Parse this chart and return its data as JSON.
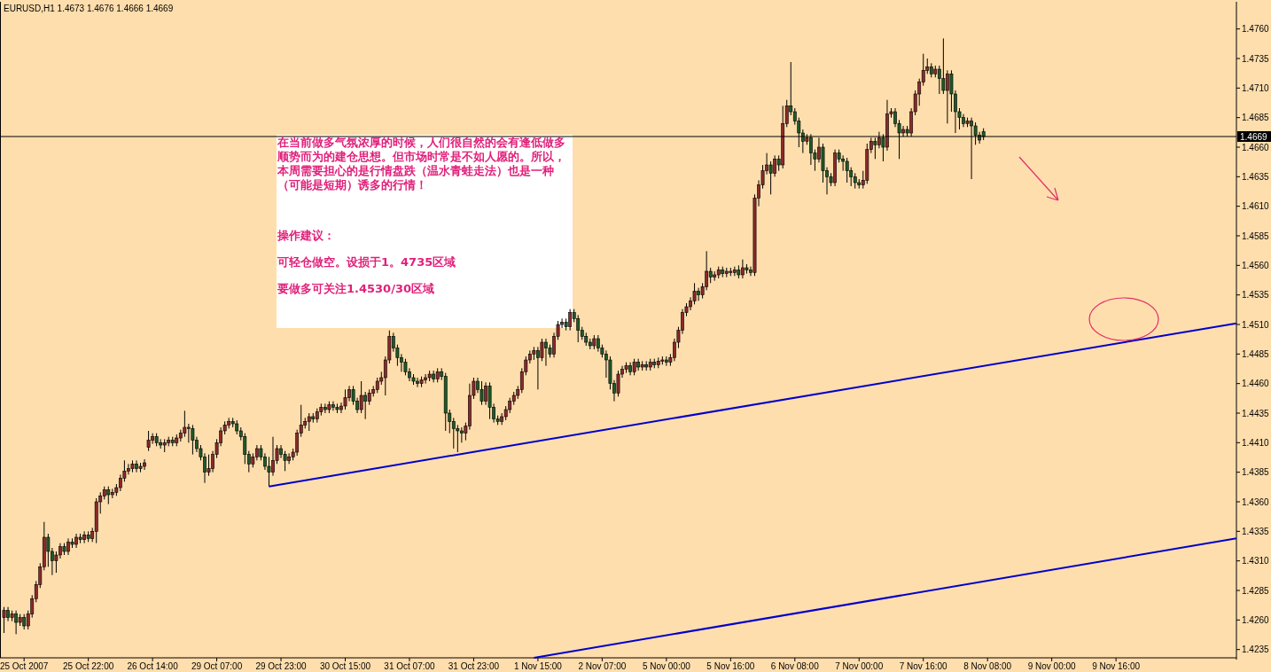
{
  "chart_data": {
    "type": "candlestick",
    "title": "EURUSD,H1 1.4673 1.4676 1.4666 1.4669",
    "annotations": [
      "在当前做多气氛浓厚的时候，人们很自然的会有逢低做多顺势而为的建仓思想。但市场时常是不如人愿的。所以，本周需要担心的是行情盘跌（温水青蛙走法）也是一种（可能是短期）诱多的行情！",
      "操作建议：",
      "可轻仓做空。设损于1。4735区域",
      "要做多可关注1.4530/30区域"
    ],
    "ylim": [
      1.4228,
      1.4783
    ],
    "categories": [
      null,
      null,
      null,
      null,
      null,
      "25 Oct 2007",
      null,
      null,
      null,
      null,
      null,
      null,
      null,
      null,
      null,
      null,
      null,
      null,
      null,
      null,
      null,
      "25 Oct 22:00",
      null,
      null,
      null,
      null,
      null,
      null,
      null,
      null,
      null,
      null,
      null,
      null,
      null,
      null,
      null,
      "26 Oct 14:00",
      null,
      null,
      null,
      null,
      null,
      null,
      null,
      null,
      null,
      null,
      null,
      null,
      null,
      null,
      null,
      "29 Oct 07:00",
      null,
      null,
      null,
      null,
      null,
      null,
      null,
      null,
      null,
      null,
      null,
      null,
      null,
      null,
      null,
      "29 Oct 23:00",
      null,
      null,
      null,
      null,
      null,
      null,
      null,
      null,
      null,
      null,
      null,
      null,
      null,
      null,
      null,
      "30 Oct 15:00",
      null,
      null,
      null,
      null,
      null,
      null,
      null,
      null,
      null,
      null,
      null,
      null,
      null,
      null,
      null,
      "31 Oct 07:00",
      null,
      null,
      null,
      null,
      null,
      null,
      null,
      null,
      null,
      null,
      null,
      null,
      null,
      null,
      null,
      "31 Oct 23:00",
      null,
      null,
      null,
      null,
      null,
      null,
      null,
      null,
      null,
      null,
      null,
      null,
      null,
      null,
      null,
      "1 Nov 15:00",
      null,
      null,
      null,
      null,
      null,
      null,
      null,
      null,
      null,
      null,
      null,
      null,
      null,
      null,
      null,
      "2 Nov 07:00",
      null,
      null,
      null,
      null,
      null,
      null,
      null,
      null,
      null,
      null,
      null,
      null,
      null,
      null,
      null,
      "5 Nov 00:00",
      null,
      null,
      null,
      null,
      null,
      null,
      null,
      null,
      null,
      null,
      null,
      null,
      null,
      null,
      null,
      "5 Nov 16:00",
      null,
      null,
      null,
      null,
      null,
      null,
      null,
      null,
      null,
      null,
      null,
      null,
      null,
      null,
      null,
      "6 Nov 08:00",
      null,
      null,
      null,
      null,
      null,
      null,
      null,
      null,
      null,
      null,
      null,
      null,
      null,
      null,
      null,
      "7 Nov 00:00",
      null,
      null,
      null,
      null,
      null,
      null,
      null,
      null,
      null,
      null,
      null,
      null,
      null,
      null,
      null,
      "7 Nov 16:00",
      null,
      null,
      null,
      null,
      null,
      null,
      null,
      null,
      null,
      null,
      null,
      null,
      null,
      null,
      null,
      "8 Nov 08:00",
      null,
      null,
      null,
      null,
      null,
      null,
      null,
      null,
      null,
      null,
      null,
      null,
      null,
      null,
      null,
      "9 Nov 00:00",
      null,
      null,
      null,
      null,
      null,
      null,
      null,
      null,
      null,
      null,
      null,
      null,
      null,
      null,
      null,
      "9 Nov 16:00",
      null,
      null,
      null,
      null,
      null,
      null,
      null,
      null,
      null,
      null,
      null,
      null,
      null,
      null,
      null,
      null,
      null,
      null,
      null,
      null,
      null,
      null,
      null,
      null,
      null,
      null,
      null,
      null,
      null,
      null
    ],
    "yticks": [
      {
        "value": 1.4235,
        "label": "1.4235"
      },
      {
        "value": 1.426,
        "label": "1.4260"
      },
      {
        "value": 1.4285,
        "label": "1.4285"
      },
      {
        "value": 1.431,
        "label": "1.4310"
      },
      {
        "value": 1.4335,
        "label": "1.4335"
      },
      {
        "value": 1.436,
        "label": "1.4360"
      },
      {
        "value": 1.4385,
        "label": "1.4385"
      },
      {
        "value": 1.441,
        "label": "1.4410"
      },
      {
        "value": 1.4435,
        "label": "1.4435"
      },
      {
        "value": 1.446,
        "label": "1.4460"
      },
      {
        "value": 1.4485,
        "label": "1.4485"
      },
      {
        "value": 1.451,
        "label": "1.4510"
      },
      {
        "value": 1.4535,
        "label": "1.4535"
      },
      {
        "value": 1.456,
        "label": "1.4560"
      },
      {
        "value": 1.4585,
        "label": "1.4585"
      },
      {
        "value": 1.461,
        "label": "1.4610"
      },
      {
        "value": 1.4635,
        "label": "1.4635"
      },
      {
        "value": 1.466,
        "label": "1.4660"
      },
      {
        "value": 1.4685,
        "label": "1.4685"
      },
      {
        "value": 1.471,
        "label": "1.4710"
      },
      {
        "value": 1.4735,
        "label": "1.4735"
      },
      {
        "value": 1.476,
        "label": "1.4760"
      }
    ],
    "ref_lines": [
      {
        "axis": "y",
        "value": 1.4669,
        "label": "1.4669",
        "color": "#000000"
      }
    ],
    "series": [
      {
        "type": "line",
        "color": "#0000cc",
        "values": [
          null,
          null,
          null,
          null,
          null,
          null,
          null,
          null,
          null,
          null,
          null,
          null,
          null,
          null,
          null,
          null,
          null,
          null,
          null,
          null,
          null,
          null,
          null,
          null,
          null,
          null,
          null,
          null,
          null,
          null,
          null,
          null,
          null,
          null,
          null,
          null,
          null,
          null,
          null,
          null,
          null,
          null,
          null,
          null,
          null,
          null,
          null,
          null,
          null,
          null,
          null,
          null,
          null,
          null,
          null,
          null,
          null,
          null,
          null,
          null,
          null,
          null,
          null,
          null,
          null,
          null,
          1.4373,
          null,
          null,
          null,
          null,
          null,
          null,
          null,
          null,
          null,
          null,
          null,
          null,
          null,
          null,
          null,
          null,
          null,
          null,
          null,
          null,
          null,
          null,
          null,
          null,
          null,
          null,
          null,
          null,
          null,
          null,
          null,
          null,
          null,
          null,
          null,
          null,
          null,
          null,
          null,
          null,
          null,
          null,
          null,
          null,
          null,
          null,
          null,
          null,
          null,
          null,
          null,
          null,
          null,
          null,
          null,
          null,
          null,
          null,
          null,
          null,
          null,
          null,
          null,
          null,
          null,
          null,
          null,
          null,
          null,
          null,
          null,
          null,
          null,
          null,
          null,
          null,
          null,
          null,
          null,
          null,
          null,
          null,
          null,
          null,
          null,
          null,
          null,
          null,
          null,
          null,
          null,
          null,
          null,
          null,
          null,
          null,
          null,
          null,
          null,
          null,
          null,
          null,
          null,
          null,
          null,
          null,
          null,
          null,
          null,
          null,
          null,
          null,
          null,
          null,
          null,
          null,
          null,
          null,
          null,
          null,
          null,
          null,
          null,
          null,
          null,
          null,
          null,
          null,
          null,
          null,
          null,
          null,
          null,
          null,
          null,
          null,
          null,
          null,
          null,
          null,
          null,
          null,
          null,
          null,
          null,
          null,
          null,
          null,
          null,
          null,
          null,
          null,
          null,
          null,
          null,
          null,
          null,
          null,
          null,
          null,
          null,
          null,
          null,
          null,
          null,
          null,
          null,
          null,
          null,
          null,
          null,
          null,
          null,
          null,
          null,
          null,
          null,
          null,
          null,
          null,
          null,
          null,
          null,
          null,
          null,
          null,
          null,
          null,
          null,
          null,
          null,
          null,
          null,
          null,
          null,
          null,
          null,
          null,
          null,
          null,
          null,
          null,
          null,
          null,
          null,
          null,
          null,
          null,
          null,
          null,
          null,
          null,
          null,
          null,
          null,
          null,
          null,
          null,
          null,
          null,
          null,
          null,
          null,
          null,
          null,
          null,
          null,
          null,
          null,
          null,
          null,
          null,
          null,
          null,
          null,
          null,
          null,
          null,
          null,
          null,
          1.4511
        ]
      },
      {
        "type": "line",
        "color": "#0000cc",
        "values": [
          null,
          null,
          null,
          null,
          null,
          null,
          null,
          null,
          null,
          null,
          null,
          null,
          null,
          null,
          null,
          null,
          null,
          null,
          null,
          null,
          null,
          null,
          null,
          null,
          null,
          null,
          null,
          null,
          null,
          null,
          null,
          null,
          null,
          null,
          null,
          null,
          null,
          null,
          null,
          null,
          null,
          null,
          null,
          null,
          null,
          null,
          null,
          null,
          null,
          null,
          null,
          null,
          null,
          null,
          null,
          null,
          null,
          null,
          null,
          null,
          null,
          null,
          null,
          null,
          null,
          null,
          null,
          null,
          null,
          null,
          null,
          null,
          null,
          null,
          null,
          null,
          null,
          null,
          null,
          null,
          null,
          null,
          null,
          null,
          null,
          null,
          null,
          null,
          null,
          null,
          null,
          null,
          null,
          null,
          null,
          null,
          null,
          null,
          null,
          null,
          null,
          null,
          null,
          null,
          null,
          null,
          null,
          null,
          null,
          null,
          null,
          null,
          null,
          null,
          null,
          null,
          null,
          null,
          null,
          null,
          null,
          null,
          null,
          null,
          null,
          null,
          null,
          null,
          null,
          null,
          null,
          null,
          1.4228,
          null,
          null,
          null,
          null,
          null,
          null,
          null,
          null,
          null,
          null,
          null,
          null,
          null,
          null,
          null,
          null,
          null,
          null,
          null,
          null,
          null,
          null,
          null,
          null,
          null,
          null,
          null,
          null,
          null,
          null,
          null,
          null,
          null,
          null,
          null,
          null,
          null,
          null,
          null,
          null,
          null,
          null,
          null,
          null,
          null,
          null,
          null,
          null,
          null,
          null,
          null,
          null,
          null,
          null,
          null,
          null,
          null,
          null,
          null,
          null,
          null,
          null,
          null,
          null,
          null,
          null,
          null,
          null,
          null,
          null,
          null,
          null,
          null,
          null,
          null,
          null,
          null,
          null,
          null,
          null,
          null,
          null,
          null,
          null,
          null,
          null,
          null,
          null,
          null,
          null,
          null,
          null,
          null,
          null,
          null,
          null,
          null,
          null,
          null,
          null,
          null,
          null,
          null,
          null,
          null,
          null,
          null,
          null,
          null,
          null,
          null,
          null,
          null,
          null,
          null,
          null,
          null,
          null,
          null,
          null,
          null,
          null,
          null,
          null,
          null,
          null,
          null,
          null,
          null,
          null,
          null,
          null,
          null,
          null,
          null,
          null,
          null,
          null,
          null,
          null,
          null,
          null,
          null,
          null,
          null,
          null,
          null,
          null,
          null,
          null,
          null,
          null,
          null,
          null,
          null,
          null,
          null,
          null,
          null,
          null,
          null,
          null,
          null,
          null,
          null,
          null,
          null,
          null,
          null,
          null,
          null,
          null,
          null,
          null,
          1.4329
        ]
      }
    ],
    "ohlc": [
      [
        1.4262,
        1.4271,
        1.4249,
        1.4268
      ],
      [
        1.4268,
        1.4271,
        1.4259,
        1.4262
      ],
      [
        1.4262,
        1.4268,
        1.4259,
        1.4265
      ],
      [
        1.4265,
        1.4268,
        1.4248,
        1.4258
      ],
      [
        1.4258,
        1.4265,
        1.4255,
        1.4262
      ],
      [
        1.4262,
        1.4265,
        1.4252,
        1.4255
      ],
      [
        1.4255,
        1.4268,
        1.4252,
        1.4265
      ],
      [
        1.4265,
        1.4281,
        1.4262,
        1.4278
      ],
      [
        1.4278,
        1.4293,
        1.4275,
        1.429
      ],
      [
        1.429,
        1.4308,
        1.4287,
        1.4305
      ],
      [
        1.4305,
        1.4343,
        1.4302,
        1.433
      ],
      [
        1.433,
        1.4333,
        1.4305,
        1.4318
      ],
      [
        1.4318,
        1.4321,
        1.4298,
        1.431
      ],
      [
        1.431,
        1.4318,
        1.43,
        1.4315
      ],
      [
        1.4315,
        1.4325,
        1.4312,
        1.4322
      ],
      [
        1.4322,
        1.4325,
        1.4315,
        1.4318
      ],
      [
        1.4318,
        1.4329,
        1.4315,
        1.4326
      ],
      [
        1.4326,
        1.4329,
        1.4321,
        1.4324
      ],
      [
        1.4324,
        1.4333,
        1.4321,
        1.433
      ],
      [
        1.433,
        1.4333,
        1.4325,
        1.4328
      ],
      [
        1.4328,
        1.4335,
        1.4325,
        1.4332
      ],
      [
        1.4332,
        1.4335,
        1.4326,
        1.4329
      ],
      [
        1.4329,
        1.4338,
        1.4326,
        1.4335
      ],
      [
        1.4335,
        1.4363,
        1.4325,
        1.436
      ],
      [
        1.436,
        1.4368,
        1.435,
        1.4365
      ],
      [
        1.4365,
        1.4373,
        1.4362,
        1.437
      ],
      [
        1.437,
        1.4373,
        1.4358,
        1.4366
      ],
      [
        1.4366,
        1.4371,
        1.4363,
        1.4368
      ],
      [
        1.4368,
        1.4375,
        1.4365,
        1.4372
      ],
      [
        1.4372,
        1.4383,
        1.4369,
        1.438
      ],
      [
        1.438,
        1.4395,
        1.4377,
        1.4386
      ],
      [
        1.4386,
        1.4392,
        1.4383,
        1.4388
      ],
      [
        1.4388,
        1.4395,
        1.4385,
        1.4392
      ],
      [
        1.4392,
        1.4395,
        1.4385,
        1.4388
      ],
      [
        1.4388,
        1.4393,
        1.4385,
        1.439
      ],
      [
        1.439,
        1.4396,
        1.4387,
        1.4393
      ],
      [
        1.4406,
        1.442,
        1.4403,
        1.4412
      ],
      [
        1.4412,
        1.4418,
        1.4409,
        1.4415
      ],
      [
        1.4415,
        1.4418,
        1.4407,
        1.441
      ],
      [
        1.441,
        1.4413,
        1.4405,
        1.4408
      ],
      [
        1.4408,
        1.4413,
        1.4402,
        1.441
      ],
      [
        1.441,
        1.4415,
        1.4407,
        1.4412
      ],
      [
        1.4412,
        1.4415,
        1.4407,
        1.441
      ],
      [
        1.441,
        1.4417,
        1.4407,
        1.4414
      ],
      [
        1.4414,
        1.4421,
        1.4411,
        1.4418
      ],
      [
        1.4418,
        1.4437,
        1.4415,
        1.4423
      ],
      [
        1.4423,
        1.4426,
        1.441,
        1.4422
      ],
      [
        1.4422,
        1.4425,
        1.44,
        1.4412
      ],
      [
        1.4412,
        1.4415,
        1.4402,
        1.4405
      ],
      [
        1.4405,
        1.4408,
        1.4395,
        1.4398
      ],
      [
        1.4398,
        1.4401,
        1.4376,
        1.4385
      ],
      [
        1.4385,
        1.44,
        1.4382,
        1.4388
      ],
      [
        1.4388,
        1.4403,
        1.4385,
        1.44
      ],
      [
        1.44,
        1.4413,
        1.4397,
        1.441
      ],
      [
        1.441,
        1.4423,
        1.4407,
        1.442
      ],
      [
        1.442,
        1.4428,
        1.4417,
        1.4425
      ],
      [
        1.4425,
        1.4431,
        1.4422,
        1.4428
      ],
      [
        1.4428,
        1.4431,
        1.4423,
        1.4426
      ],
      [
        1.4426,
        1.4429,
        1.4417,
        1.442
      ],
      [
        1.442,
        1.4423,
        1.4412,
        1.4415
      ],
      [
        1.4415,
        1.4418,
        1.4392,
        1.44
      ],
      [
        1.44,
        1.4403,
        1.4385,
        1.4392
      ],
      [
        1.4392,
        1.4401,
        1.4389,
        1.4398
      ],
      [
        1.4398,
        1.4408,
        1.4395,
        1.4405
      ],
      [
        1.4405,
        1.4408,
        1.4395,
        1.4398
      ],
      [
        1.4398,
        1.4401,
        1.4387,
        1.439
      ],
      [
        1.439,
        1.4398,
        1.4373,
        1.4385
      ],
      [
        1.4385,
        1.4415,
        1.4382,
        1.4395
      ],
      [
        1.4395,
        1.4408,
        1.4392,
        1.4405
      ],
      [
        1.4405,
        1.4408,
        1.4397,
        1.44
      ],
      [
        1.44,
        1.4403,
        1.4386,
        1.4395
      ],
      [
        1.4395,
        1.4401,
        1.4392,
        1.4398
      ],
      [
        1.4398,
        1.4405,
        1.4395,
        1.4402
      ],
      [
        1.4402,
        1.4421,
        1.4399,
        1.4418
      ],
      [
        1.4418,
        1.4442,
        1.4415,
        1.4425
      ],
      [
        1.4425,
        1.4431,
        1.4422,
        1.4428
      ],
      [
        1.4428,
        1.4435,
        1.442,
        1.4432
      ],
      [
        1.4432,
        1.4435,
        1.4427,
        1.443
      ],
      [
        1.443,
        1.4439,
        1.4427,
        1.4436
      ],
      [
        1.4436,
        1.4443,
        1.4433,
        1.444
      ],
      [
        1.444,
        1.4443,
        1.4435,
        1.4438
      ],
      [
        1.4438,
        1.4445,
        1.4435,
        1.4442
      ],
      [
        1.4442,
        1.4445,
        1.4437,
        1.444
      ],
      [
        1.444,
        1.4443,
        1.4435,
        1.4438
      ],
      [
        1.4438,
        1.4444,
        1.4435,
        1.4441
      ],
      [
        1.4441,
        1.4455,
        1.4438,
        1.4448
      ],
      [
        1.4448,
        1.4458,
        1.4445,
        1.4455
      ],
      [
        1.4455,
        1.4458,
        1.4442,
        1.4445
      ],
      [
        1.4445,
        1.4448,
        1.4435,
        1.4438
      ],
      [
        1.4438,
        1.4462,
        1.4435,
        1.445
      ],
      [
        1.445,
        1.4453,
        1.443,
        1.4445
      ],
      [
        1.4445,
        1.4455,
        1.4442,
        1.4452
      ],
      [
        1.4452,
        1.4458,
        1.4449,
        1.4455
      ],
      [
        1.4455,
        1.4465,
        1.4452,
        1.4462
      ],
      [
        1.4462,
        1.447,
        1.4459,
        1.4465
      ],
      [
        1.4465,
        1.4483,
        1.445,
        1.448
      ],
      [
        1.448,
        1.4505,
        1.4477,
        1.45
      ],
      [
        1.45,
        1.4503,
        1.4487,
        1.449
      ],
      [
        1.449,
        1.4493,
        1.4475,
        1.4482
      ],
      [
        1.4482,
        1.4485,
        1.447,
        1.4478
      ],
      [
        1.4478,
        1.4481,
        1.4467,
        1.447
      ],
      [
        1.447,
        1.4473,
        1.4462,
        1.4465
      ],
      [
        1.4465,
        1.4468,
        1.4459,
        1.4462
      ],
      [
        1.4462,
        1.4465,
        1.4457,
        1.446
      ],
      [
        1.446,
        1.4466,
        1.4457,
        1.4463
      ],
      [
        1.4463,
        1.4468,
        1.446,
        1.4465
      ],
      [
        1.4465,
        1.4471,
        1.4462,
        1.4468
      ],
      [
        1.4468,
        1.4471,
        1.4461,
        1.4464
      ],
      [
        1.4464,
        1.4473,
        1.4461,
        1.447
      ],
      [
        1.447,
        1.4473,
        1.4463,
        1.4466
      ],
      [
        1.4466,
        1.4469,
        1.442,
        1.4435
      ],
      [
        1.4435,
        1.4438,
        1.4418,
        1.4428
      ],
      [
        1.4428,
        1.4431,
        1.4405,
        1.4422
      ],
      [
        1.4422,
        1.4425,
        1.4402,
        1.442
      ],
      [
        1.442,
        1.4423,
        1.441,
        1.4418
      ],
      [
        1.4418,
        1.4427,
        1.4412,
        1.4424
      ],
      [
        1.4424,
        1.446,
        1.4421,
        1.445
      ],
      [
        1.445,
        1.4465,
        1.4447,
        1.4462
      ],
      [
        1.4462,
        1.4465,
        1.4452,
        1.4455
      ],
      [
        1.4455,
        1.4462,
        1.4442,
        1.4445
      ],
      [
        1.4445,
        1.4461,
        1.4442,
        1.4458
      ],
      [
        1.4458,
        1.4461,
        1.443,
        1.444
      ],
      [
        1.444,
        1.4443,
        1.4427,
        1.443
      ],
      [
        1.443,
        1.4433,
        1.4425,
        1.4428
      ],
      [
        1.4428,
        1.4435,
        1.4425,
        1.4432
      ],
      [
        1.4432,
        1.4441,
        1.4429,
        1.4438
      ],
      [
        1.4438,
        1.4448,
        1.4435,
        1.4445
      ],
      [
        1.4445,
        1.4453,
        1.4442,
        1.445
      ],
      [
        1.445,
        1.4458,
        1.4447,
        1.4455
      ],
      [
        1.4455,
        1.4473,
        1.4452,
        1.447
      ],
      [
        1.447,
        1.4483,
        1.4467,
        1.448
      ],
      [
        1.448,
        1.4488,
        1.4477,
        1.4485
      ],
      [
        1.4485,
        1.4491,
        1.448,
        1.4488
      ],
      [
        1.4488,
        1.4491,
        1.4455,
        1.4482
      ],
      [
        1.4482,
        1.4498,
        1.4479,
        1.4495
      ],
      [
        1.4495,
        1.4498,
        1.4475,
        1.449
      ],
      [
        1.449,
        1.4493,
        1.4482,
        1.4485
      ],
      [
        1.4485,
        1.4503,
        1.4482,
        1.45
      ],
      [
        1.45,
        1.4513,
        1.4497,
        1.451
      ],
      [
        1.451,
        1.4515,
        1.4507,
        1.4512
      ],
      [
        1.4512,
        1.4515,
        1.4505,
        1.4508
      ],
      [
        1.4508,
        1.4523,
        1.4505,
        1.452
      ],
      [
        1.452,
        1.4523,
        1.4512,
        1.4515
      ],
      [
        1.4515,
        1.4518,
        1.4495,
        1.4505
      ],
      [
        1.4505,
        1.4508,
        1.4497,
        1.45
      ],
      [
        1.45,
        1.4503,
        1.4492,
        1.4495
      ],
      [
        1.4495,
        1.4498,
        1.4489,
        1.4492
      ],
      [
        1.4492,
        1.4501,
        1.4489,
        1.4498
      ],
      [
        1.4498,
        1.4501,
        1.4487,
        1.449
      ],
      [
        1.449,
        1.4493,
        1.4482,
        1.4485
      ],
      [
        1.4485,
        1.4488,
        1.4465,
        1.448
      ],
      [
        1.448,
        1.4483,
        1.4455,
        1.446
      ],
      [
        1.446,
        1.4463,
        1.4445,
        1.4452
      ],
      [
        1.4452,
        1.4471,
        1.4449,
        1.4468
      ],
      [
        1.4468,
        1.4475,
        1.4465,
        1.4472
      ],
      [
        1.4472,
        1.4478,
        1.4469,
        1.4475
      ],
      [
        1.4475,
        1.4478,
        1.4467,
        1.447
      ],
      [
        1.447,
        1.4481,
        1.4467,
        1.4478
      ],
      [
        1.4478,
        1.4481,
        1.4471,
        1.4474
      ],
      [
        1.4474,
        1.4479,
        1.4471,
        1.4476
      ],
      [
        1.4476,
        1.4479,
        1.4471,
        1.4474
      ],
      [
        1.4474,
        1.4481,
        1.4471,
        1.4478
      ],
      [
        1.4478,
        1.4481,
        1.4473,
        1.4476
      ],
      [
        1.4476,
        1.4482,
        1.4473,
        1.4479
      ],
      [
        1.4479,
        1.4483,
        1.4476,
        1.448
      ],
      [
        1.448,
        1.4483,
        1.4475,
        1.4478
      ],
      [
        1.4478,
        1.4485,
        1.4475,
        1.4482
      ],
      [
        1.4482,
        1.4498,
        1.4479,
        1.4495
      ],
      [
        1.4495,
        1.4508,
        1.449,
        1.4505
      ],
      [
        1.4505,
        1.4523,
        1.4502,
        1.452
      ],
      [
        1.452,
        1.4528,
        1.4517,
        1.4525
      ],
      [
        1.4525,
        1.4533,
        1.4522,
        1.453
      ],
      [
        1.453,
        1.4545,
        1.4527,
        1.4538
      ],
      [
        1.4538,
        1.4541,
        1.453,
        1.4535
      ],
      [
        1.4535,
        1.4545,
        1.4532,
        1.4542
      ],
      [
        1.4542,
        1.4572,
        1.4539,
        1.4555
      ],
      [
        1.4555,
        1.4558,
        1.4545,
        1.455
      ],
      [
        1.455,
        1.4555,
        1.4547,
        1.4552
      ],
      [
        1.4552,
        1.4559,
        1.4549,
        1.4556
      ],
      [
        1.4556,
        1.4559,
        1.455,
        1.4553
      ],
      [
        1.4553,
        1.4558,
        1.455,
        1.4555
      ],
      [
        1.4555,
        1.4558,
        1.4551,
        1.4554
      ],
      [
        1.4554,
        1.4559,
        1.4551,
        1.4556
      ],
      [
        1.4556,
        1.456,
        1.4549,
        1.4552
      ],
      [
        1.4552,
        1.4565,
        1.4549,
        1.4558
      ],
      [
        1.4558,
        1.4561,
        1.4553,
        1.4556
      ],
      [
        1.4556,
        1.4559,
        1.4551,
        1.4554
      ],
      [
        1.4554,
        1.462,
        1.4551,
        1.4617
      ],
      [
        1.4617,
        1.4632,
        1.461,
        1.4628
      ],
      [
        1.4628,
        1.4645,
        1.4625,
        1.464
      ],
      [
        1.464,
        1.4655,
        1.4637,
        1.4645
      ],
      [
        1.4645,
        1.4648,
        1.462,
        1.4638
      ],
      [
        1.4638,
        1.4653,
        1.4635,
        1.465
      ],
      [
        1.465,
        1.4653,
        1.464,
        1.4645
      ],
      [
        1.4645,
        1.4695,
        1.4642,
        1.468
      ],
      [
        1.468,
        1.47,
        1.4677,
        1.4695
      ],
      [
        1.4695,
        1.4732,
        1.4687,
        1.469
      ],
      [
        1.469,
        1.4693,
        1.4679,
        1.4682
      ],
      [
        1.4682,
        1.4685,
        1.466,
        1.4672
      ],
      [
        1.4672,
        1.4675,
        1.4655,
        1.4665
      ],
      [
        1.4665,
        1.4671,
        1.4662,
        1.4668
      ],
      [
        1.4668,
        1.4671,
        1.4645,
        1.4655
      ],
      [
        1.4655,
        1.4658,
        1.464,
        1.465
      ],
      [
        1.465,
        1.4668,
        1.4647,
        1.466
      ],
      [
        1.466,
        1.4663,
        1.463,
        1.464
      ],
      [
        1.464,
        1.4643,
        1.462,
        1.4635
      ],
      [
        1.4635,
        1.4638,
        1.4627,
        1.463
      ],
      [
        1.463,
        1.4658,
        1.4627,
        1.4655
      ],
      [
        1.4655,
        1.4658,
        1.4647,
        1.465
      ],
      [
        1.465,
        1.4653,
        1.464,
        1.4648
      ],
      [
        1.4648,
        1.4651,
        1.463,
        1.464
      ],
      [
        1.464,
        1.4643,
        1.4627,
        1.4635
      ],
      [
        1.4635,
        1.4638,
        1.4625,
        1.463
      ],
      [
        1.463,
        1.4633,
        1.4625,
        1.4628
      ],
      [
        1.4628,
        1.464,
        1.4625,
        1.4632
      ],
      [
        1.4632,
        1.4663,
        1.4629,
        1.4658
      ],
      [
        1.4658,
        1.4668,
        1.4655,
        1.4665
      ],
      [
        1.4665,
        1.4668,
        1.465,
        1.4662
      ],
      [
        1.4662,
        1.4673,
        1.4659,
        1.4668
      ],
      [
        1.4668,
        1.4671,
        1.4648,
        1.466
      ],
      [
        1.466,
        1.47,
        1.4657,
        1.4688
      ],
      [
        1.4688,
        1.4693,
        1.4685,
        1.469
      ],
      [
        1.469,
        1.4693,
        1.4677,
        1.468
      ],
      [
        1.468,
        1.4683,
        1.465,
        1.4672
      ],
      [
        1.4672,
        1.4678,
        1.4669,
        1.4675
      ],
      [
        1.4675,
        1.4678,
        1.4669,
        1.4672
      ],
      [
        1.4672,
        1.4693,
        1.4669,
        1.469
      ],
      [
        1.469,
        1.4708,
        1.4687,
        1.4705
      ],
      [
        1.4705,
        1.4718,
        1.4695,
        1.4715
      ],
      [
        1.4715,
        1.4739,
        1.4712,
        1.4725
      ],
      [
        1.4725,
        1.4735,
        1.4722,
        1.4728
      ],
      [
        1.4728,
        1.4731,
        1.4719,
        1.4722
      ],
      [
        1.4722,
        1.4729,
        1.4719,
        1.4726
      ],
      [
        1.4726,
        1.4729,
        1.4705,
        1.4718
      ],
      [
        1.4718,
        1.4752,
        1.4705,
        1.4708
      ],
      [
        1.4708,
        1.4725,
        1.468,
        1.4722
      ],
      [
        1.4722,
        1.4725,
        1.469,
        1.4705
      ],
      [
        1.4705,
        1.4708,
        1.4672,
        1.469
      ],
      [
        1.469,
        1.4693,
        1.4675,
        1.4685
      ],
      [
        1.4685,
        1.4688,
        1.4677,
        1.468
      ],
      [
        1.468,
        1.4685,
        1.4677,
        1.4682
      ],
      [
        1.4682,
        1.4685,
        1.4633,
        1.4678
      ],
      [
        1.4678,
        1.4681,
        1.4662,
        1.467
      ],
      [
        1.467,
        1.4673,
        1.4663,
        1.4666
      ],
      [
        1.4673,
        1.4676,
        1.4666,
        1.4669
      ],
      null,
      null,
      null,
      null,
      null,
      null,
      null,
      null,
      null,
      null,
      null,
      null,
      null,
      null,
      null,
      null,
      null,
      null,
      null,
      null,
      null,
      null,
      null,
      null,
      null,
      null,
      null,
      null,
      null,
      null,
      null,
      null,
      null,
      null,
      null,
      null,
      null,
      null,
      null,
      null,
      null,
      null,
      null,
      null,
      null,
      null,
      null,
      null,
      null,
      null,
      null,
      null,
      null,
      null,
      null,
      null,
      null,
      null,
      null,
      null,
      null,
      null,
      null
    ]
  }
}
